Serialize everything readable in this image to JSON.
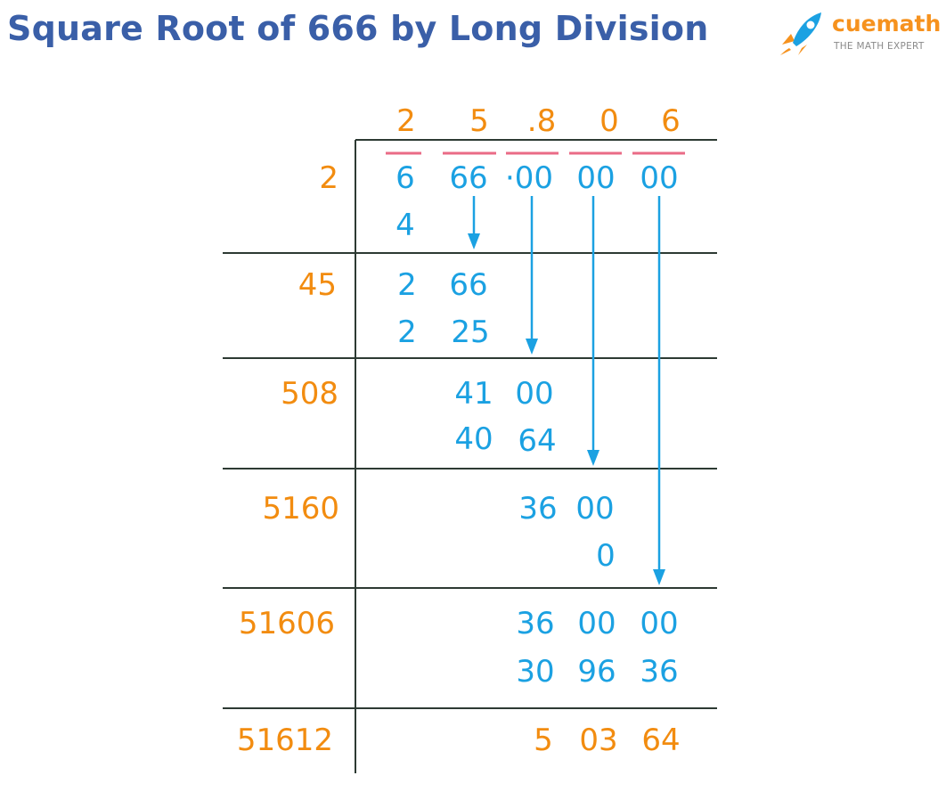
{
  "title": "Square Root of 666 by Long Division",
  "brand": {
    "name": "cuemath",
    "tagline": "THE MATH EXPERT",
    "icon": "rocket-icon"
  },
  "colors": {
    "title": "#3a5fa8",
    "orange": "#f28c10",
    "blue": "#1ba1e2",
    "pair_bar": "#ea6b86",
    "rule": "#2d3a33"
  },
  "quotient_digits": [
    "2",
    "5",
    ".8",
    "0",
    "6"
  ],
  "dividend_groups": [
    "6",
    "66",
    "·00",
    "00",
    "00"
  ],
  "divisors": [
    "2",
    "45",
    "508",
    "5160",
    "51606",
    "51612"
  ],
  "steps": [
    {
      "subtract": [
        "4"
      ]
    },
    {
      "carry": [
        "2",
        "66"
      ],
      "subtract": [
        "2",
        "25"
      ]
    },
    {
      "carry": [
        "41",
        "00"
      ],
      "subtract": [
        "40",
        "64"
      ]
    },
    {
      "carry": [
        "36",
        "00"
      ],
      "subtract": [
        "0"
      ]
    },
    {
      "carry": [
        "36",
        "00",
        "00"
      ],
      "subtract": [
        "30",
        "96",
        "36"
      ]
    }
  ],
  "remainder": [
    "5",
    "03",
    "64"
  ]
}
